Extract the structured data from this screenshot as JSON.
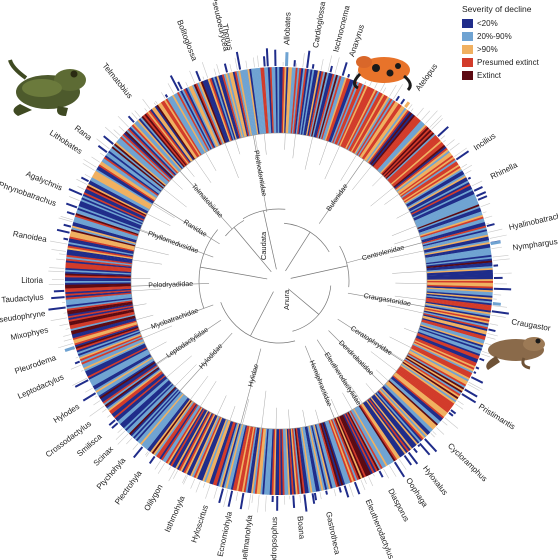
{
  "legend": {
    "title": "Severity of decline",
    "items": [
      {
        "label": "<20%",
        "color": "#1f2c8a"
      },
      {
        "label": "20%-90%",
        "color": "#6fa3d2"
      },
      {
        "label": ">90%",
        "color": "#f0b060"
      },
      {
        "label": "Presumed extinct",
        "color": "#d23b2a"
      },
      {
        "label": "Extinct",
        "color": "#5c0a12"
      }
    ]
  },
  "center_labels": [
    "Caudata",
    "Anura"
  ],
  "families": [
    {
      "name": "Plethodontidae",
      "angle": -10
    },
    {
      "name": "Bufonidae",
      "angle": 35
    },
    {
      "name": "Centrolenidae",
      "angle": 75
    },
    {
      "name": "Craugastoridae",
      "angle": 100
    },
    {
      "name": "Ceratophryidae",
      "angle": 123
    },
    {
      "name": "Dendrobatidae",
      "angle": 135
    },
    {
      "name": "Eleutherodactylidae",
      "angle": 147
    },
    {
      "name": "Hemiphractidae",
      "angle": 158
    },
    {
      "name": "Hylidae",
      "angle": 195
    },
    {
      "name": "Hylodidae",
      "angle": 222
    },
    {
      "name": "Leptodactylidae",
      "angle": 236
    },
    {
      "name": "Myobatrachidae",
      "angle": 250
    },
    {
      "name": "Pelodryadidae",
      "angle": 268
    },
    {
      "name": "Phyllomedusidae",
      "angle": 290
    },
    {
      "name": "Ranidae",
      "angle": 302
    },
    {
      "name": "Telmatobiidae",
      "angle": 318
    }
  ],
  "genera": [
    {
      "name": "Thorius",
      "angle": -12
    },
    {
      "name": "Allobates",
      "angle": 2
    },
    {
      "name": "Cardioglossa",
      "angle": 9
    },
    {
      "name": "Ischnocnema",
      "angle": 14
    },
    {
      "name": "Anaxyrus",
      "angle": 18
    },
    {
      "name": "Atelopus",
      "angle": 36
    },
    {
      "name": "Incilius",
      "angle": 56
    },
    {
      "name": "Rhinella",
      "angle": 64
    },
    {
      "name": "Hyalinobatrachium",
      "angle": 77
    },
    {
      "name": "Nymphargus",
      "angle": 82
    },
    {
      "name": "Craugastor",
      "angle": 100
    },
    {
      "name": "Pristimantis",
      "angle": 122
    },
    {
      "name": "Cycloramphus",
      "angle": 134
    },
    {
      "name": "Hyloxalus",
      "angle": 142
    },
    {
      "name": "Oophaga",
      "angle": 147
    },
    {
      "name": "Diasporus",
      "angle": 152
    },
    {
      "name": "Eleutherodactylus",
      "angle": 158
    },
    {
      "name": "Gastrotheca",
      "angle": 168
    },
    {
      "name": "Boana",
      "angle": 175
    },
    {
      "name": "Dendropsophus",
      "angle": 181
    },
    {
      "name": "Duellmanohyla",
      "angle": 187
    },
    {
      "name": "Ecnomiohyla",
      "angle": 192
    },
    {
      "name": "Hyloscirtus",
      "angle": 198
    },
    {
      "name": "Isthmohyla",
      "angle": 204
    },
    {
      "name": "Olilygon",
      "angle": 210
    },
    {
      "name": "Plectrohyla",
      "angle": 216
    },
    {
      "name": "Ptychohyla",
      "angle": 221
    },
    {
      "name": "Scinax",
      "angle": 225
    },
    {
      "name": "Smilisca",
      "angle": 229
    },
    {
      "name": "Crossodactylus",
      "angle": 233
    },
    {
      "name": "Hylodes",
      "angle": 238
    },
    {
      "name": "Leptodactylus",
      "angle": 246
    },
    {
      "name": "Pleurodema",
      "angle": 251
    },
    {
      "name": "Mixophyes",
      "angle": 258
    },
    {
      "name": "Pseudophryne",
      "angle": 262
    },
    {
      "name": "Taudactylus",
      "angle": 266
    },
    {
      "name": "Litoria",
      "angle": 270
    },
    {
      "name": "Ranoidea",
      "angle": 280
    },
    {
      "name": "Phrynobatrachus",
      "angle": 289
    },
    {
      "name": "Agalychnis",
      "angle": 293
    },
    {
      "name": "Lithobates",
      "angle": 303
    },
    {
      "name": "Rana",
      "angle": 307
    },
    {
      "name": "Telmatobius",
      "angle": 321
    },
    {
      "name": "Bolitoglossa",
      "angle": 339
    },
    {
      "name": "Pseudoeurycea",
      "angle": 347
    }
  ]
}
